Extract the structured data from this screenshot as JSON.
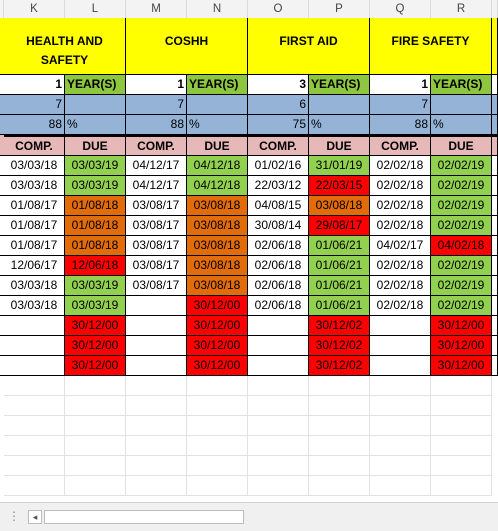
{
  "columns": [
    "K",
    "L",
    "M",
    "N",
    "O",
    "P",
    "Q",
    "R"
  ],
  "sections": [
    {
      "title": "HEALTH AND SAFETY",
      "years": "1",
      "years_label": "YEAR(S)",
      "count": "7",
      "percent": "88",
      "percent_sign": "%"
    },
    {
      "title": "COSHH",
      "years": "1",
      "years_label": "YEAR(S)",
      "count": "7",
      "percent": "88",
      "percent_sign": "%"
    },
    {
      "title": "FIRST AID",
      "years": "3",
      "years_label": "YEAR(S)",
      "count": "6",
      "percent": "75",
      "percent_sign": "%"
    },
    {
      "title": "FIRE SAFETY",
      "years": "1",
      "years_label": "YEAR(S)",
      "count": "7",
      "percent": "88",
      "percent_sign": "%"
    }
  ],
  "header_labels": {
    "comp": "COMP.",
    "due": "DUE"
  },
  "rows": [
    [
      [
        "03/03/18",
        "white"
      ],
      [
        "03/03/19",
        "lgreen"
      ],
      [
        "04/12/17",
        "white"
      ],
      [
        "04/12/18",
        "lgreen"
      ],
      [
        "01/02/16",
        "white"
      ],
      [
        "31/01/19",
        "lgreen"
      ],
      [
        "02/02/18",
        "white"
      ],
      [
        "02/02/19",
        "lgreen"
      ]
    ],
    [
      [
        "03/03/18",
        "white"
      ],
      [
        "03/03/19",
        "lgreen"
      ],
      [
        "04/12/17",
        "white"
      ],
      [
        "04/12/18",
        "lgreen"
      ],
      [
        "22/03/12",
        "white"
      ],
      [
        "22/03/15",
        "red"
      ],
      [
        "02/02/18",
        "white"
      ],
      [
        "02/02/19",
        "lgreen"
      ]
    ],
    [
      [
        "01/08/17",
        "white"
      ],
      [
        "01/08/18",
        "orange"
      ],
      [
        "03/08/17",
        "white"
      ],
      [
        "03/08/18",
        "orange"
      ],
      [
        "04/08/15",
        "white"
      ],
      [
        "03/08/18",
        "orange"
      ],
      [
        "02/02/18",
        "white"
      ],
      [
        "02/02/19",
        "lgreen"
      ]
    ],
    [
      [
        "01/08/17",
        "white"
      ],
      [
        "01/08/18",
        "orange"
      ],
      [
        "03/08/17",
        "white"
      ],
      [
        "03/08/18",
        "orange"
      ],
      [
        "30/08/14",
        "white"
      ],
      [
        "29/08/17",
        "red"
      ],
      [
        "02/02/18",
        "white"
      ],
      [
        "02/02/19",
        "lgreen"
      ]
    ],
    [
      [
        "01/08/17",
        "white"
      ],
      [
        "01/08/18",
        "orange"
      ],
      [
        "03/08/17",
        "white"
      ],
      [
        "03/08/18",
        "orange"
      ],
      [
        "02/06/18",
        "white"
      ],
      [
        "01/06/21",
        "lgreen"
      ],
      [
        "04/02/17",
        "white"
      ],
      [
        "04/02/18",
        "red"
      ]
    ],
    [
      [
        "12/06/17",
        "white"
      ],
      [
        "12/06/18",
        "red"
      ],
      [
        "03/08/17",
        "white"
      ],
      [
        "03/08/18",
        "orange"
      ],
      [
        "02/06/18",
        "white"
      ],
      [
        "01/06/21",
        "lgreen"
      ],
      [
        "02/02/18",
        "white"
      ],
      [
        "02/02/19",
        "lgreen"
      ]
    ],
    [
      [
        "03/03/18",
        "white"
      ],
      [
        "03/03/19",
        "lgreen"
      ],
      [
        "03/08/17",
        "white"
      ],
      [
        "03/08/18",
        "orange"
      ],
      [
        "02/06/18",
        "white"
      ],
      [
        "01/06/21",
        "lgreen"
      ],
      [
        "02/02/18",
        "white"
      ],
      [
        "02/02/19",
        "lgreen"
      ]
    ],
    [
      [
        "03/03/18",
        "white"
      ],
      [
        "03/03/19",
        "lgreen"
      ],
      [
        "",
        "white"
      ],
      [
        "30/12/00",
        "red"
      ],
      [
        "02/06/18",
        "white"
      ],
      [
        "01/06/21",
        "lgreen"
      ],
      [
        "02/02/18",
        "white"
      ],
      [
        "02/02/19",
        "lgreen"
      ]
    ],
    [
      [
        "",
        "white"
      ],
      [
        "30/12/00",
        "red"
      ],
      [
        "",
        "white"
      ],
      [
        "30/12/00",
        "red"
      ],
      [
        "",
        "white"
      ],
      [
        "30/12/02",
        "red"
      ],
      [
        "",
        "white"
      ],
      [
        "30/12/00",
        "red"
      ]
    ],
    [
      [
        "",
        "white"
      ],
      [
        "30/12/00",
        "red"
      ],
      [
        "",
        "white"
      ],
      [
        "30/12/00",
        "red"
      ],
      [
        "",
        "white"
      ],
      [
        "30/12/02",
        "red"
      ],
      [
        "",
        "white"
      ],
      [
        "30/12/00",
        "red"
      ]
    ],
    [
      [
        "",
        "white"
      ],
      [
        "30/12/00",
        "red"
      ],
      [
        "",
        "white"
      ],
      [
        "30/12/00",
        "red"
      ],
      [
        "",
        "white"
      ],
      [
        "30/12/02",
        "red"
      ],
      [
        "",
        "white"
      ],
      [
        "30/12/00",
        "red"
      ]
    ]
  ]
}
